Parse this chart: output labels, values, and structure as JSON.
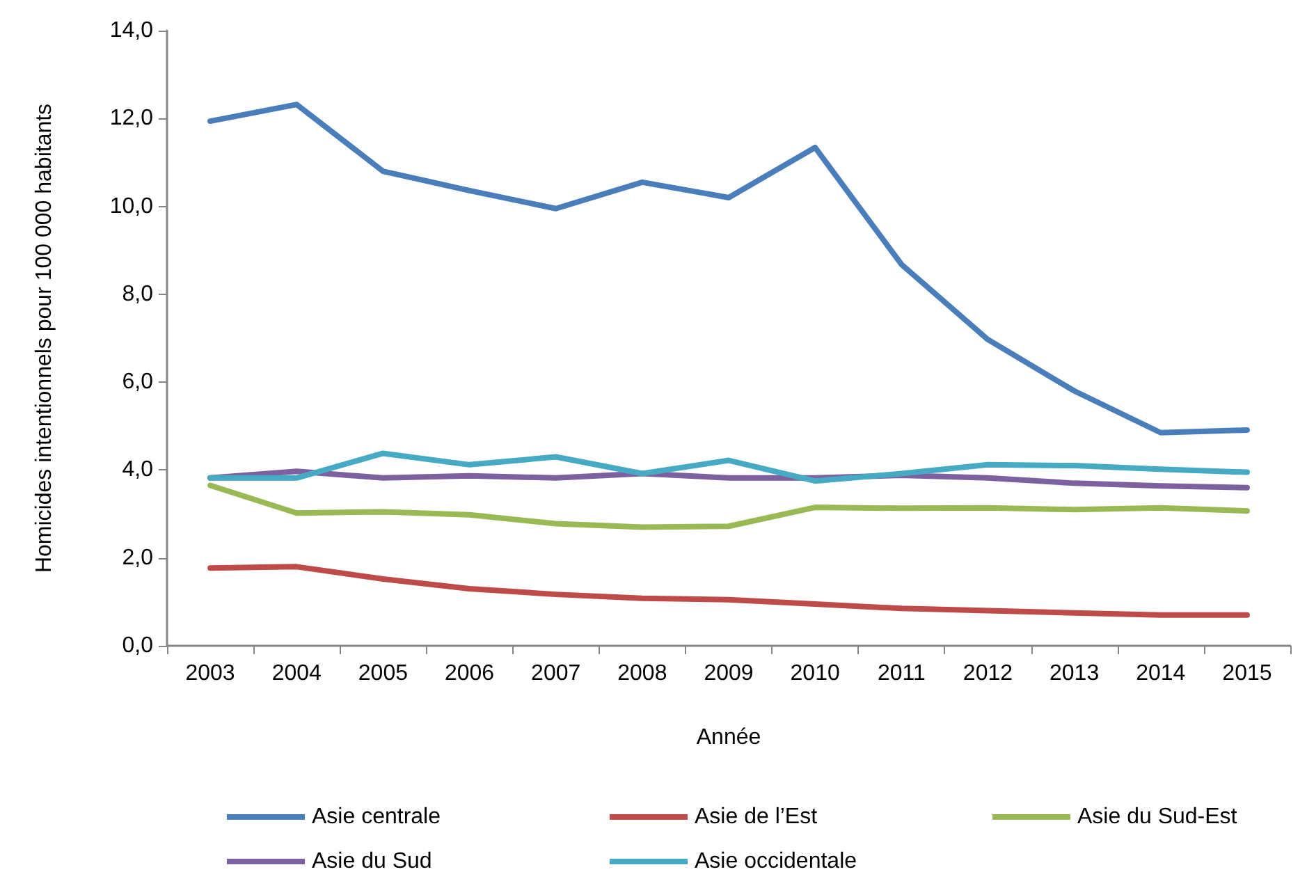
{
  "chart_data": {
    "type": "line",
    "xlabel": "Année",
    "ylabel": "Homicides intentionnels pour 100 000 habitants",
    "categories": [
      "2003",
      "2004",
      "2005",
      "2006",
      "2007",
      "2008",
      "2009",
      "2010",
      "2011",
      "2012",
      "2013",
      "2014",
      "2015"
    ],
    "series": [
      {
        "name": "Asie centrale",
        "color": "#4a7ebb",
        "values": [
          11.94,
          12.32,
          10.8,
          10.36,
          9.95,
          10.55,
          10.2,
          11.34,
          8.68,
          6.97,
          5.8,
          4.85,
          4.91
        ]
      },
      {
        "name": "Asie de l’Est",
        "color": "#be4b48",
        "values": [
          1.77,
          1.8,
          1.52,
          1.3,
          1.17,
          1.08,
          1.05,
          0.95,
          0.85,
          0.8,
          0.75,
          0.7,
          0.7
        ]
      },
      {
        "name": "Asie du Sud-Est",
        "color": "#98b954",
        "values": [
          3.65,
          3.02,
          3.05,
          2.98,
          2.78,
          2.7,
          2.72,
          3.15,
          3.13,
          3.14,
          3.1,
          3.14,
          3.07
        ]
      },
      {
        "name": "Asie du Sud",
        "color": "#7d60a0",
        "values": [
          3.82,
          3.97,
          3.82,
          3.87,
          3.82,
          3.92,
          3.82,
          3.82,
          3.88,
          3.82,
          3.7,
          3.64,
          3.6
        ]
      },
      {
        "name": "Asie occidentale",
        "color": "#46aac5",
        "values": [
          3.82,
          3.82,
          4.38,
          4.12,
          4.3,
          3.92,
          4.22,
          3.75,
          3.92,
          4.12,
          4.1,
          4.02,
          3.95
        ]
      }
    ],
    "ylim": [
      0,
      14
    ],
    "yticks": [
      {
        "value": 0,
        "label": "0,0"
      },
      {
        "value": 2,
        "label": "2,0"
      },
      {
        "value": 4,
        "label": "4,0"
      },
      {
        "value": 6,
        "label": "6,0"
      },
      {
        "value": 8,
        "label": "8,0"
      },
      {
        "value": 10,
        "label": "10,0"
      },
      {
        "value": 12,
        "label": "12,0"
      },
      {
        "value": 14,
        "label": "14,0"
      }
    ],
    "grid": false,
    "legend": "bottom",
    "marker": "none",
    "line_style": "solid"
  }
}
